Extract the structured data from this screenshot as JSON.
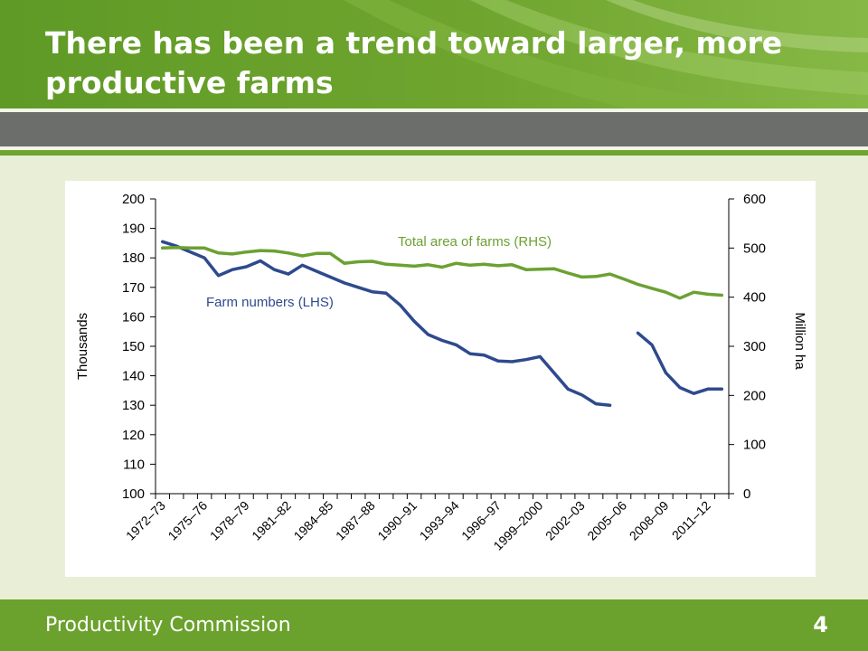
{
  "slide": {
    "title": "There has been a trend toward larger, more productive farms",
    "footer_org": "Productivity Commission",
    "page_number": "4"
  },
  "colors": {
    "header_green": "#6fa52f",
    "footer_green": "#6ba12d",
    "background": "#e8efd6",
    "series_farm_numbers": "#2e4a8e",
    "series_farm_area": "#6ba132"
  },
  "chart_data": {
    "type": "line",
    "title": "",
    "x_tick_labels": [
      "1972–73",
      "1975–76",
      "1978–79",
      "1981–82",
      "1984–85",
      "1987–88",
      "1990–91",
      "1993–94",
      "1996–97",
      "1999–2000",
      "2002–03",
      "2005–06",
      "2008–09",
      "2011–12"
    ],
    "x_years": [
      "1972–73",
      "1973–74",
      "1974–75",
      "1975–76",
      "1976–77",
      "1977–78",
      "1978–79",
      "1979–80",
      "1980–81",
      "1981–82",
      "1982–83",
      "1983–84",
      "1984–85",
      "1985–86",
      "1986–87",
      "1987–88",
      "1988–89",
      "1989–90",
      "1990–91",
      "1991–92",
      "1992–93",
      "1993–94",
      "1994–95",
      "1995–96",
      "1996–97",
      "1997–98",
      "1998–99",
      "1999–2000",
      "2000–01",
      "2001–02",
      "2002–03",
      "2003–04",
      "2004–05",
      "2005–06",
      "2006–07",
      "2007–08",
      "2008–09",
      "2009–10",
      "2010–11",
      "2011–12",
      "2012–13"
    ],
    "y_left": {
      "label": "Thousands",
      "min": 100,
      "max": 200,
      "ticks": [
        100,
        110,
        120,
        130,
        140,
        150,
        160,
        170,
        180,
        190,
        200
      ]
    },
    "y_right": {
      "label": "Million ha",
      "min": 0,
      "max": 600,
      "ticks": [
        0,
        100,
        200,
        300,
        400,
        500,
        600
      ]
    },
    "grid": false,
    "series": [
      {
        "name": "Farm numbers (LHS)",
        "axis": "left",
        "values": [
          185.5,
          184,
          182,
          180,
          174,
          176,
          177,
          179,
          176,
          174.5,
          177.5,
          175.5,
          173.5,
          171.5,
          170,
          168.5,
          168,
          164,
          158.5,
          154,
          152,
          150.5,
          147.5,
          147,
          145,
          144.8,
          145.5,
          146.5,
          141,
          135.5,
          133.5,
          130.5,
          130,
          null,
          154.5,
          150.5,
          141,
          136,
          134,
          135.5,
          135.5
        ]
      },
      {
        "name": "Total area of farms (RHS)",
        "axis": "right",
        "values": [
          500,
          501,
          500,
          500,
          490,
          488,
          492,
          495,
          494,
          490,
          484,
          489,
          489,
          469,
          472,
          473,
          467,
          465,
          463,
          466,
          461,
          469,
          465,
          467,
          464,
          466,
          456,
          457,
          458,
          449,
          441,
          442,
          447,
          437,
          426,
          418,
          410,
          398,
          410,
          406,
          404
        ]
      }
    ]
  }
}
